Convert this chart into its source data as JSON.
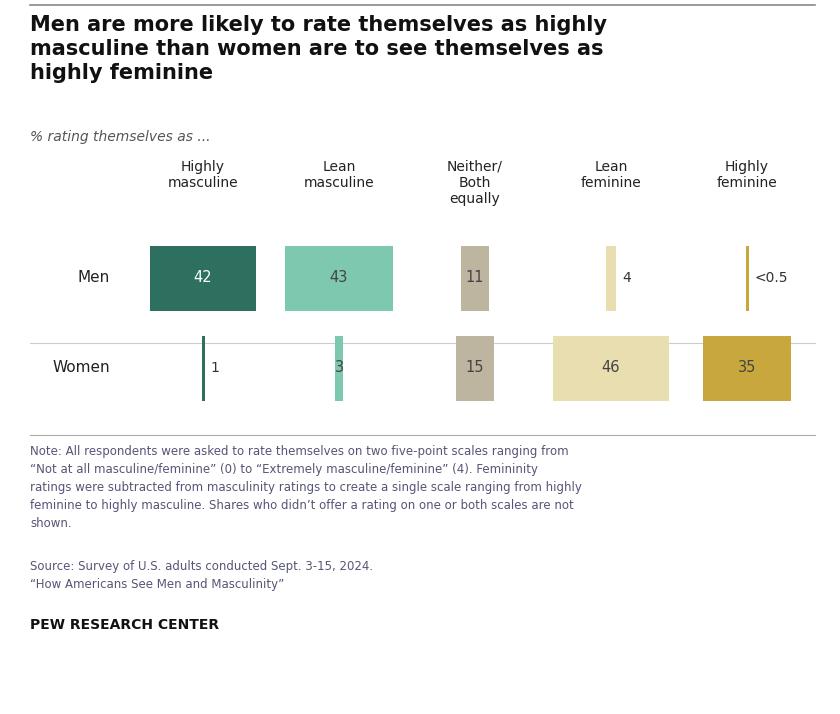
{
  "title": "Men are more likely to rate themselves as highly\nmasculine than women are to see themselves as\nhighly feminine",
  "subtitle": "% rating themselves as ...",
  "columns": [
    "Highly\nmasculine",
    "Lean\nmasculine",
    "Neither/\nBoth\nequally",
    "Lean\nfeminine",
    "Highly\nfeminine"
  ],
  "rows": [
    "Men",
    "Women"
  ],
  "values": {
    "Men": [
      42,
      43,
      11,
      4,
      "<0.5"
    ],
    "Women": [
      1,
      3,
      15,
      46,
      35
    ]
  },
  "numeric_values": {
    "Men": [
      42,
      43,
      11,
      4,
      0.3
    ],
    "Women": [
      1,
      3,
      15,
      46,
      35
    ]
  },
  "colors": {
    "Men": [
      "#2E7060",
      "#7EC8B0",
      "#BEB5A0",
      "#E8DEB0",
      "#C8A83C"
    ],
    "Women": [
      "#2E7060",
      "#7EC8B0",
      "#BEB5A0",
      "#E8DEB0",
      "#C8A83C"
    ]
  },
  "note_text": "Note: All respondents were asked to rate themselves on two five-point scales ranging from\n“Not at all masculine/feminine” (0) to “Extremely masculine/feminine” (4). Femininity\nratings were subtracted from masculinity ratings to create a single scale ranging from highly\nfeminine to highly masculine. Shares who didn’t offer a rating on one or both scales are not\nshown.",
  "source_text": "Source: Survey of U.S. adults conducted Sept. 3-15, 2024.\n“How Americans See Men and Masculinity”",
  "footer_text": "PEW RESEARCH CENTER",
  "background_color": "#FFFFFF",
  "ref_val": 46
}
